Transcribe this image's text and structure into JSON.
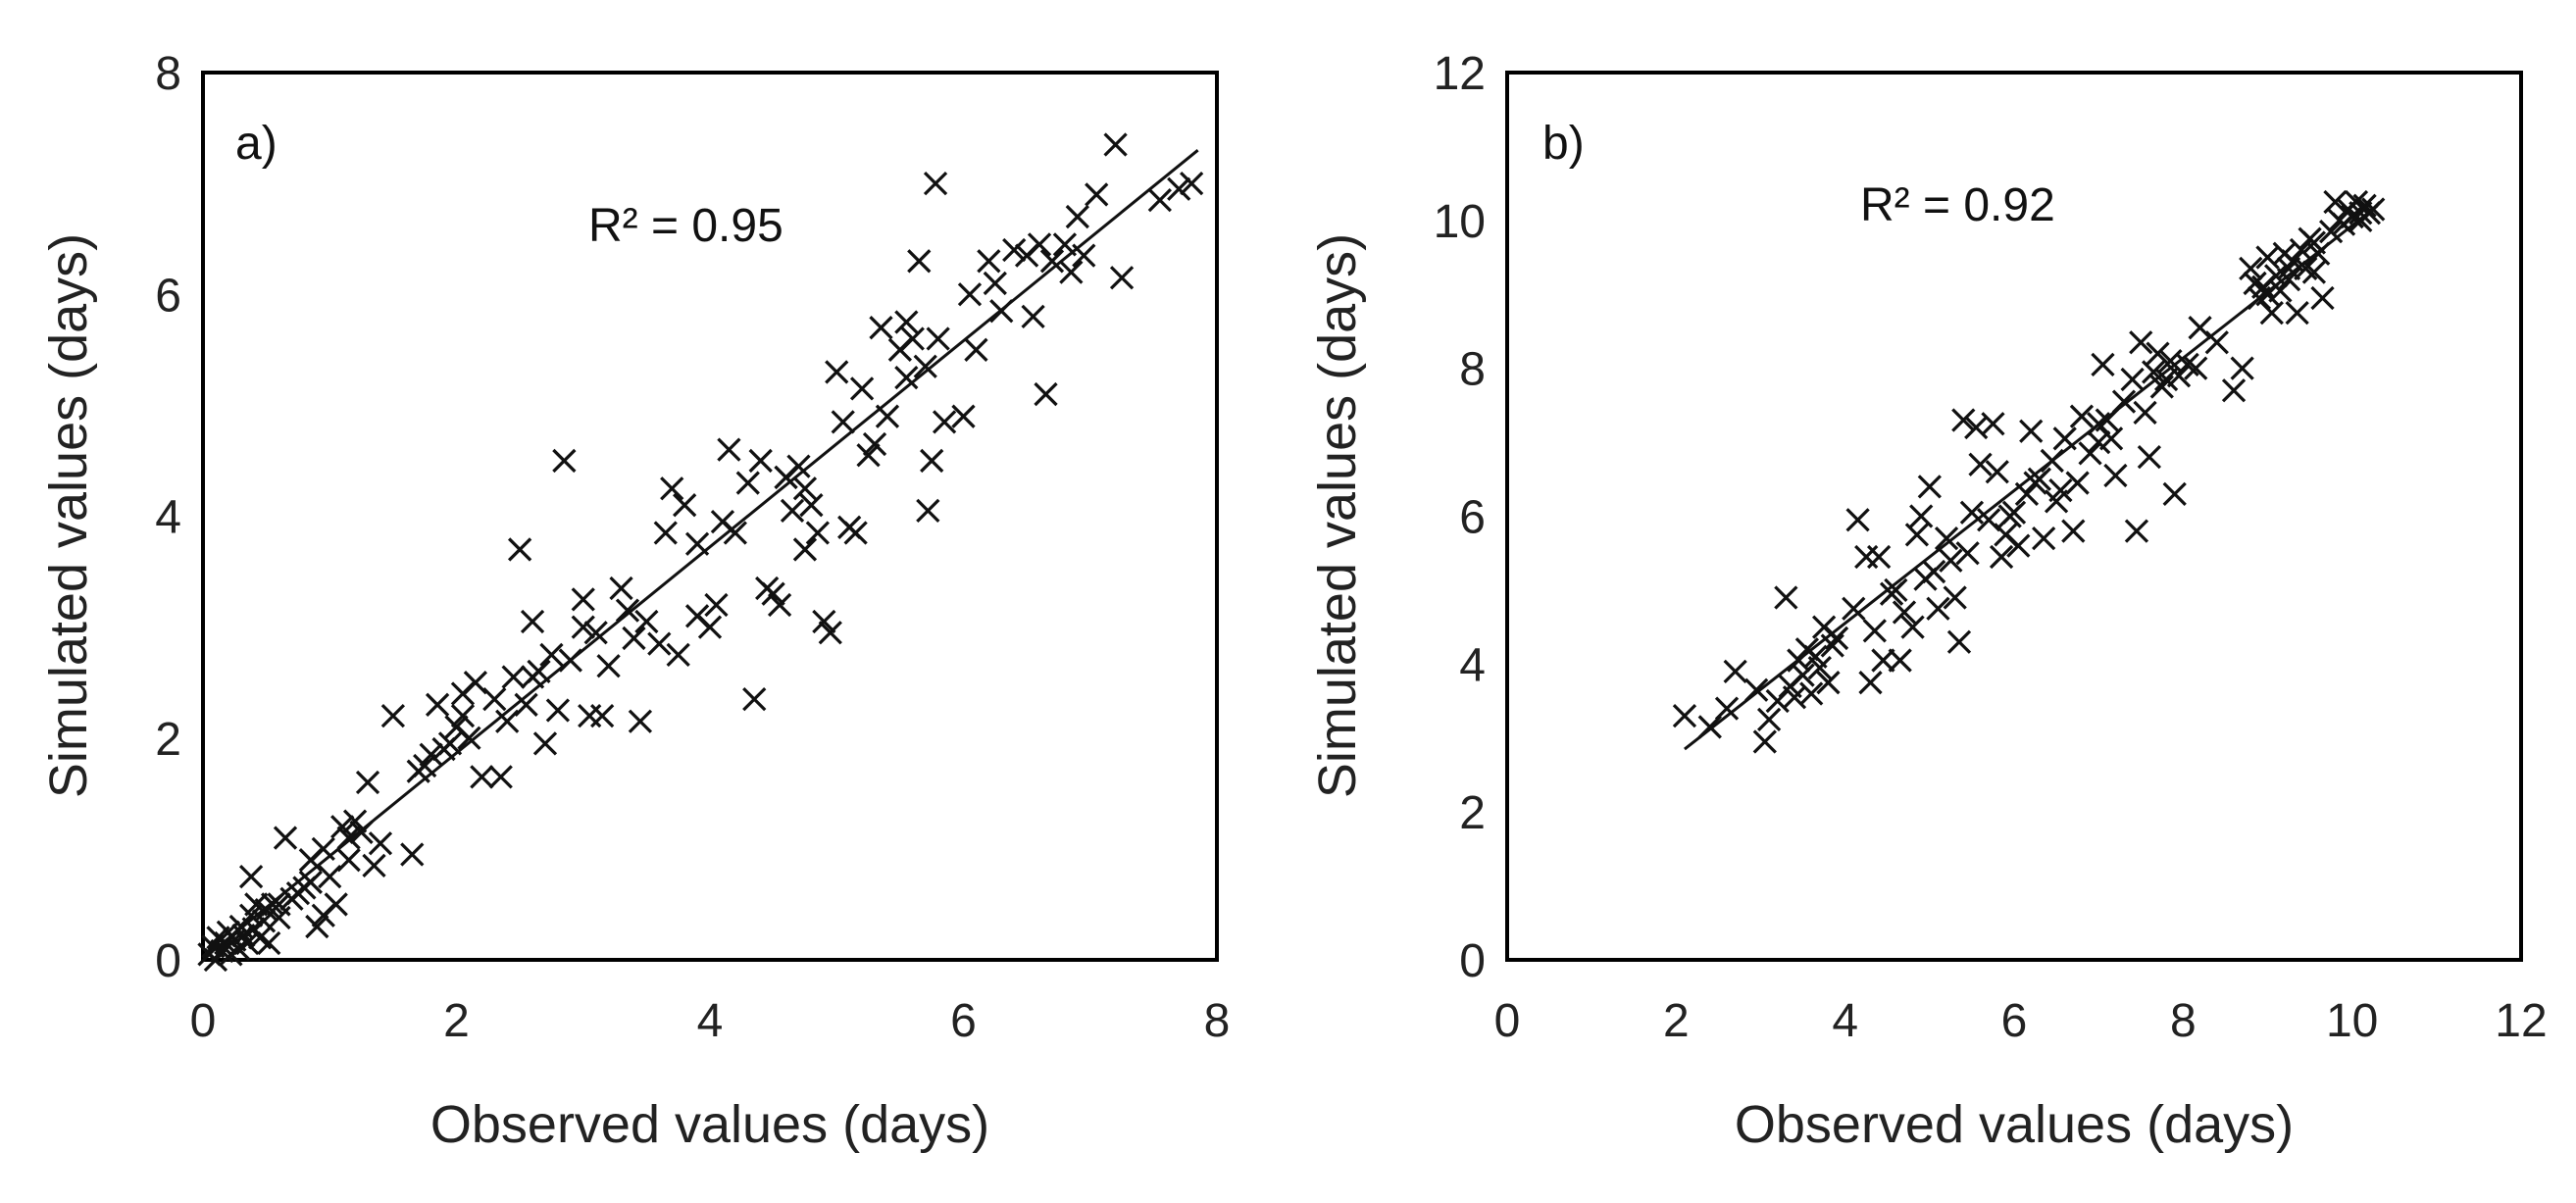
{
  "chart_data": [
    {
      "type": "scatter",
      "panel_label": "a)",
      "annotation": "R² = 0.95",
      "xlabel": "Observed values (days)",
      "ylabel": "Simulated values (days)",
      "xlim": [
        0,
        8
      ],
      "ylim": [
        0,
        8
      ],
      "xticks": [
        0,
        2,
        4,
        6,
        8
      ],
      "yticks": [
        0,
        2,
        4,
        6,
        8
      ],
      "xtick_labels": [
        "0",
        "2",
        "4",
        "6",
        "8"
      ],
      "ytick_labels": [
        "0",
        "2",
        "4",
        "6",
        "8"
      ],
      "grid": false,
      "marker": "x",
      "trendline": {
        "x": [
          0.1,
          7.85
        ],
        "y": [
          0.1,
          7.3
        ],
        "color": "#111111"
      },
      "points": [
        [
          0.05,
          0.05
        ],
        [
          0.08,
          0.12
        ],
        [
          0.1,
          0.0
        ],
        [
          0.12,
          0.2
        ],
        [
          0.15,
          0.08
        ],
        [
          0.18,
          0.15
        ],
        [
          0.2,
          0.25
        ],
        [
          0.22,
          0.05
        ],
        [
          0.25,
          0.18
        ],
        [
          0.28,
          0.1
        ],
        [
          0.3,
          0.3
        ],
        [
          0.32,
          0.22
        ],
        [
          0.35,
          0.15
        ],
        [
          0.38,
          0.4
        ],
        [
          0.4,
          0.28
        ],
        [
          0.42,
          0.5
        ],
        [
          0.45,
          0.2
        ],
        [
          0.48,
          0.35
        ],
        [
          0.5,
          0.45
        ],
        [
          0.52,
          0.15
        ],
        [
          0.55,
          0.5
        ],
        [
          0.6,
          0.38
        ],
        [
          0.65,
          1.1
        ],
        [
          0.7,
          0.55
        ],
        [
          0.75,
          0.6
        ],
        [
          0.8,
          0.65
        ],
        [
          0.85,
          0.9
        ],
        [
          0.9,
          0.3
        ],
        [
          0.95,
          0.4
        ],
        [
          1.0,
          0.75
        ],
        [
          1.05,
          0.5
        ],
        [
          1.1,
          1.2
        ],
        [
          1.15,
          0.9
        ],
        [
          1.2,
          1.25
        ],
        [
          1.25,
          1.15
        ],
        [
          1.3,
          1.6
        ],
        [
          1.35,
          0.85
        ],
        [
          1.4,
          1.05
        ],
        [
          0.38,
          0.75
        ],
        [
          0.95,
          1.0
        ],
        [
          1.5,
          2.2
        ],
        [
          1.65,
          0.95
        ],
        [
          1.7,
          1.7
        ],
        [
          1.8,
          1.85
        ],
        [
          1.85,
          2.3
        ],
        [
          1.9,
          1.9
        ],
        [
          2.0,
          2.1
        ],
        [
          2.05,
          2.4
        ],
        [
          2.1,
          2.0
        ],
        [
          2.15,
          2.5
        ],
        [
          2.2,
          1.65
        ],
        [
          2.3,
          2.35
        ],
        [
          2.35,
          1.65
        ],
        [
          2.4,
          2.15
        ],
        [
          2.45,
          2.55
        ],
        [
          2.5,
          3.7
        ],
        [
          2.55,
          2.3
        ],
        [
          2.6,
          3.05
        ],
        [
          2.65,
          2.6
        ],
        [
          2.7,
          1.95
        ],
        [
          2.75,
          2.75
        ],
        [
          2.8,
          2.25
        ],
        [
          2.85,
          4.5
        ],
        [
          2.9,
          2.7
        ],
        [
          3.0,
          3.25
        ],
        [
          3.05,
          2.2
        ],
        [
          3.1,
          2.95
        ],
        [
          3.15,
          2.2
        ],
        [
          3.2,
          2.65
        ],
        [
          3.3,
          3.35
        ],
        [
          3.4,
          2.9
        ],
        [
          3.45,
          2.15
        ],
        [
          3.5,
          3.05
        ],
        [
          3.6,
          2.85
        ],
        [
          3.65,
          3.85
        ],
        [
          3.7,
          4.25
        ],
        [
          3.75,
          2.75
        ],
        [
          3.8,
          4.1
        ],
        [
          3.9,
          3.1
        ],
        [
          4.0,
          3.0
        ],
        [
          4.05,
          3.2
        ],
        [
          4.1,
          3.95
        ],
        [
          4.2,
          3.85
        ],
        [
          4.3,
          4.3
        ],
        [
          4.35,
          2.35
        ],
        [
          4.4,
          4.5
        ],
        [
          4.45,
          3.35
        ],
        [
          4.5,
          3.3
        ],
        [
          4.55,
          3.2
        ],
        [
          4.6,
          4.35
        ],
        [
          4.65,
          4.05
        ],
        [
          4.7,
          4.45
        ],
        [
          4.75,
          3.7
        ],
        [
          4.8,
          4.1
        ],
        [
          4.85,
          3.85
        ],
        [
          4.9,
          3.05
        ],
        [
          4.95,
          2.95
        ],
        [
          5.0,
          5.3
        ],
        [
          5.05,
          4.85
        ],
        [
          5.1,
          3.9
        ],
        [
          5.15,
          3.85
        ],
        [
          5.2,
          5.15
        ],
        [
          5.25,
          4.55
        ],
        [
          5.3,
          4.65
        ],
        [
          5.35,
          5.7
        ],
        [
          5.4,
          4.9
        ],
        [
          5.5,
          5.5
        ],
        [
          5.55,
          5.75
        ],
        [
          5.6,
          5.6
        ],
        [
          5.65,
          6.3
        ],
        [
          5.7,
          5.35
        ],
        [
          5.72,
          4.05
        ],
        [
          5.75,
          4.5
        ],
        [
          5.78,
          7.0
        ],
        [
          5.8,
          5.6
        ],
        [
          5.85,
          4.85
        ],
        [
          6.0,
          4.9
        ],
        [
          6.05,
          6.0
        ],
        [
          6.1,
          5.5
        ],
        [
          6.2,
          6.3
        ],
        [
          6.3,
          5.85
        ],
        [
          6.4,
          6.4
        ],
        [
          6.5,
          6.35
        ],
        [
          6.55,
          5.8
        ],
        [
          6.6,
          6.45
        ],
        [
          6.65,
          5.1
        ],
        [
          6.7,
          6.3
        ],
        [
          6.8,
          6.45
        ],
        [
          6.85,
          6.2
        ],
        [
          6.9,
          6.7
        ],
        [
          6.95,
          6.35
        ],
        [
          7.05,
          6.9
        ],
        [
          7.2,
          7.35
        ],
        [
          7.25,
          6.15
        ],
        [
          7.55,
          6.85
        ],
        [
          7.7,
          6.95
        ],
        [
          7.8,
          7.0
        ],
        [
          4.6,
          4.35
        ],
        [
          4.15,
          4.6
        ],
        [
          3.0,
          3.0
        ],
        [
          2.05,
          2.2
        ],
        [
          1.75,
          1.75
        ],
        [
          1.15,
          1.1
        ],
        [
          0.6,
          0.5
        ],
        [
          3.35,
          3.15
        ],
        [
          2.6,
          2.55
        ],
        [
          5.55,
          5.25
        ],
        [
          6.25,
          6.1
        ],
        [
          4.75,
          4.25
        ],
        [
          3.9,
          3.75
        ],
        [
          0.85,
          0.7
        ],
        [
          1.95,
          1.95
        ]
      ]
    },
    {
      "type": "scatter",
      "panel_label": "b)",
      "annotation": "R² = 0.92",
      "xlabel": "Observed values (days)",
      "ylabel": "Simulated values (days)",
      "xlim": [
        0,
        12
      ],
      "ylim": [
        0,
        12
      ],
      "xticks": [
        0,
        2,
        4,
        6,
        8,
        10,
        12
      ],
      "yticks": [
        0,
        2,
        4,
        6,
        8,
        10,
        12
      ],
      "xtick_labels": [
        "0",
        "2",
        "4",
        "6",
        "8",
        "10",
        "12"
      ],
      "ytick_labels": [
        "0",
        "2",
        "4",
        "6",
        "8",
        "10",
        "12"
      ],
      "grid": false,
      "marker": "x",
      "trendline": {
        "x": [
          2.1,
          10.3
        ],
        "y": [
          2.85,
          10.2
        ],
        "color": "#111111"
      },
      "points": [
        [
          2.1,
          3.3
        ],
        [
          2.4,
          3.15
        ],
        [
          2.6,
          3.4
        ],
        [
          2.7,
          3.9
        ],
        [
          2.95,
          3.65
        ],
        [
          3.05,
          2.95
        ],
        [
          3.1,
          3.25
        ],
        [
          3.2,
          3.5
        ],
        [
          3.3,
          4.9
        ],
        [
          3.35,
          3.7
        ],
        [
          3.45,
          4.05
        ],
        [
          3.5,
          3.85
        ],
        [
          3.55,
          4.2
        ],
        [
          3.6,
          3.6
        ],
        [
          3.65,
          4.1
        ],
        [
          3.7,
          3.95
        ],
        [
          3.75,
          4.5
        ],
        [
          3.8,
          3.75
        ],
        [
          3.9,
          4.35
        ],
        [
          4.1,
          4.75
        ],
        [
          4.15,
          5.95
        ],
        [
          4.25,
          5.45
        ],
        [
          4.3,
          3.75
        ],
        [
          4.4,
          5.45
        ],
        [
          4.45,
          4.05
        ],
        [
          4.55,
          4.95
        ],
        [
          4.6,
          5.0
        ],
        [
          4.65,
          4.05
        ],
        [
          4.7,
          4.7
        ],
        [
          4.8,
          4.5
        ],
        [
          4.85,
          5.75
        ],
        [
          4.9,
          6.0
        ],
        [
          5.0,
          6.4
        ],
        [
          5.05,
          5.25
        ],
        [
          5.1,
          4.75
        ],
        [
          5.2,
          5.7
        ],
        [
          5.3,
          4.9
        ],
        [
          5.35,
          4.3
        ],
        [
          5.4,
          7.3
        ],
        [
          5.45,
          5.5
        ],
        [
          5.5,
          6.05
        ],
        [
          5.55,
          7.2
        ],
        [
          5.6,
          6.7
        ],
        [
          5.7,
          5.95
        ],
        [
          5.75,
          7.25
        ],
        [
          5.8,
          6.6
        ],
        [
          5.85,
          5.45
        ],
        [
          5.9,
          5.75
        ],
        [
          6.0,
          6.05
        ],
        [
          6.05,
          5.6
        ],
        [
          6.15,
          6.3
        ],
        [
          6.2,
          7.15
        ],
        [
          6.3,
          6.5
        ],
        [
          6.35,
          5.7
        ],
        [
          6.45,
          6.75
        ],
        [
          6.5,
          6.2
        ],
        [
          6.6,
          7.05
        ],
        [
          6.7,
          5.8
        ],
        [
          6.75,
          6.45
        ],
        [
          6.8,
          7.35
        ],
        [
          6.9,
          6.85
        ],
        [
          7.0,
          7.0
        ],
        [
          7.05,
          8.05
        ],
        [
          7.1,
          7.3
        ],
        [
          7.15,
          7.05
        ],
        [
          7.2,
          6.55
        ],
        [
          7.3,
          7.55
        ],
        [
          7.4,
          7.85
        ],
        [
          7.45,
          5.8
        ],
        [
          7.5,
          8.35
        ],
        [
          7.55,
          7.4
        ],
        [
          7.6,
          6.8
        ],
        [
          7.65,
          7.95
        ],
        [
          7.7,
          8.2
        ],
        [
          7.75,
          7.75
        ],
        [
          7.8,
          7.85
        ],
        [
          7.85,
          8.1
        ],
        [
          7.9,
          6.3
        ],
        [
          7.95,
          7.9
        ],
        [
          8.05,
          8.05
        ],
        [
          8.2,
          8.55
        ],
        [
          8.4,
          8.35
        ],
        [
          8.6,
          7.7
        ],
        [
          8.7,
          8.0
        ],
        [
          8.8,
          9.35
        ],
        [
          8.9,
          8.95
        ],
        [
          8.95,
          9.1
        ],
        [
          9.0,
          9.5
        ],
        [
          9.05,
          8.75
        ],
        [
          9.1,
          9.25
        ],
        [
          9.15,
          9.05
        ],
        [
          9.2,
          9.55
        ],
        [
          9.25,
          9.2
        ],
        [
          9.3,
          9.45
        ],
        [
          9.35,
          8.75
        ],
        [
          9.4,
          9.6
        ],
        [
          9.45,
          9.35
        ],
        [
          9.5,
          9.75
        ],
        [
          9.55,
          9.3
        ],
        [
          9.6,
          9.55
        ],
        [
          9.65,
          8.95
        ],
        [
          9.75,
          9.85
        ],
        [
          9.85,
          10.0
        ],
        [
          9.9,
          9.95
        ],
        [
          9.95,
          10.15
        ],
        [
          10.0,
          10.05
        ],
        [
          10.05,
          10.25
        ],
        [
          10.1,
          10.0
        ],
        [
          10.15,
          10.2
        ],
        [
          10.2,
          10.1
        ],
        [
          10.25,
          10.15
        ],
        [
          9.8,
          10.25
        ],
        [
          9.25,
          9.35
        ],
        [
          9.0,
          9.0
        ],
        [
          8.85,
          9.15
        ],
        [
          6.55,
          6.35
        ],
        [
          5.95,
          6.0
        ],
        [
          4.95,
          5.15
        ],
        [
          3.85,
          4.25
        ],
        [
          7.0,
          7.25
        ],
        [
          8.15,
          8.0
        ],
        [
          6.25,
          6.45
        ],
        [
          5.25,
          5.4
        ],
        [
          9.55,
          9.7
        ],
        [
          10.1,
          10.1
        ],
        [
          4.35,
          4.45
        ],
        [
          3.4,
          3.55
        ]
      ]
    }
  ]
}
